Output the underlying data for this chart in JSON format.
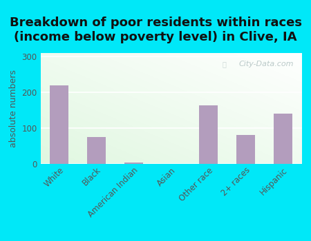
{
  "title": "Breakdown of poor residents within races\n(income below poverty level) in Clive, IA",
  "categories": [
    "White",
    "Black",
    "American Indian",
    "Asian",
    "Other race",
    "2+ races",
    "Hispanic"
  ],
  "values": [
    220,
    75,
    3,
    0,
    163,
    80,
    140
  ],
  "bar_color": "#b39dbd",
  "ylabel": "absolute numbers",
  "yticks": [
    0,
    100,
    200,
    300
  ],
  "ylim": [
    0,
    310
  ],
  "background_color": "#00e8f8",
  "title_fontsize": 13,
  "ylabel_fontsize": 9,
  "tick_fontsize": 8.5,
  "watermark": "City-Data.com"
}
